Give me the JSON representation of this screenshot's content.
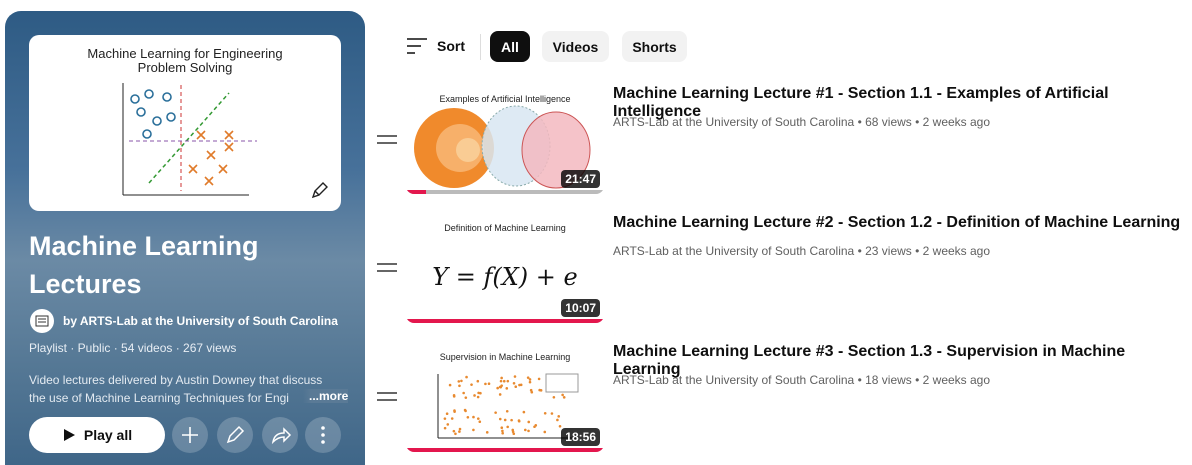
{
  "playlist": {
    "thumbnail_title": "Machine Learning for Engineering Problem Solving",
    "title": "Machine Learning Lectures",
    "owner": "by ARTS-Lab at the University of South Carolina",
    "details": "Playlist · Public · 54 videos · 267 views",
    "description": "Video lectures delivered by Austin Downey that discuss the use of Machine Learning Techniques for Engi",
    "more": "...more",
    "play_all": "Play all"
  },
  "toolbar": {
    "sort": "Sort",
    "chips": [
      "All",
      "Videos",
      "Shorts"
    ],
    "selected": 0
  },
  "videos": [
    {
      "thumbnail_title": "Examples of Artificial Intelligence",
      "duration": "21:47",
      "title": "Machine Learning Lecture #1 - Section 1.1 - Examples of Artificial Intelligence",
      "meta": "ARTS-Lab at the University of South Carolina • 68 views • 2 weeks ago"
    },
    {
      "thumbnail_title": "Definition of Machine Learning",
      "thumbnail_formula": "Y = f(X) + e",
      "duration": "10:07",
      "title": "Machine Learning Lecture #2 - Section 1.2 - Definition of Machine Learning",
      "meta": "ARTS-Lab at the University of South Carolina • 23 views • 2 weeks ago"
    },
    {
      "thumbnail_title": "Supervision in Machine Learning",
      "duration": "18:56",
      "title": "Machine Learning Lecture #3 - Section 1.3 - Supervision in Machine Learning",
      "meta": "ARTS-Lab at the University of South Carolina • 18 views • 2 weeks ago"
    }
  ]
}
